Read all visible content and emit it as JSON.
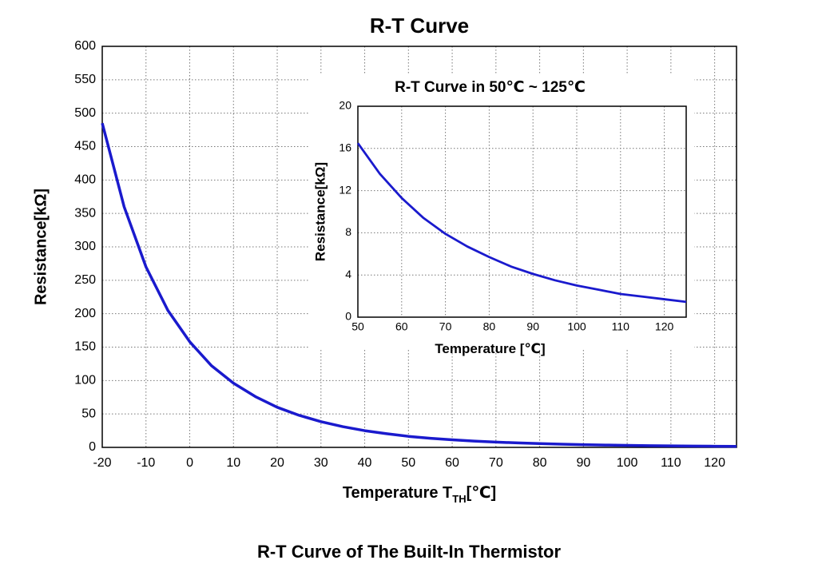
{
  "chart_data": [
    {
      "type": "line",
      "title": "R-T Curve",
      "xlabel": "Temperature T",
      "xlabel_sub": "TH",
      "xlabel_end": "[℃]",
      "ylabel": "Resistance[kΩ]",
      "xlim": [
        -20,
        125
      ],
      "ylim": [
        0,
        600
      ],
      "xticks": [
        -20,
        -10,
        0,
        10,
        20,
        30,
        40,
        50,
        60,
        70,
        80,
        90,
        100,
        110,
        120
      ],
      "yticks": [
        0,
        50,
        100,
        150,
        200,
        250,
        300,
        350,
        400,
        450,
        500,
        550,
        600
      ],
      "grid": true,
      "x": [
        -20,
        -15,
        -10,
        -5,
        0,
        5,
        10,
        15,
        20,
        25,
        30,
        35,
        40,
        45,
        50,
        55,
        60,
        65,
        70,
        75,
        80,
        85,
        90,
        95,
        100,
        105,
        110,
        115,
        120,
        125
      ],
      "series": [
        {
          "color": "#1a1acd",
          "values": [
            485,
            360,
            270,
            205,
            158,
            122,
            96,
            76,
            60,
            48,
            38.5,
            31,
            25,
            20.5,
            16.5,
            13.6,
            11.3,
            9.4,
            7.9,
            6.7,
            5.7,
            4.8,
            4.1,
            3.5,
            3.0,
            2.6,
            2.2,
            1.95,
            1.7,
            1.45
          ]
        }
      ]
    },
    {
      "type": "line",
      "title": "R-T Curve in 50℃ ~ 125℃",
      "xlabel": "Temperature [℃]",
      "ylabel": "Resistance[kΩ]",
      "xlim": [
        50,
        125
      ],
      "ylim": [
        0,
        20
      ],
      "xticks": [
        50,
        60,
        70,
        80,
        90,
        100,
        110,
        120
      ],
      "yticks": [
        0,
        4,
        8,
        12,
        16,
        20
      ],
      "grid": true,
      "x": [
        50,
        55,
        60,
        65,
        70,
        75,
        80,
        85,
        90,
        95,
        100,
        105,
        110,
        115,
        120,
        125
      ],
      "series": [
        {
          "color": "#1a1acd",
          "values": [
            16.5,
            13.6,
            11.3,
            9.4,
            7.9,
            6.7,
            5.7,
            4.8,
            4.1,
            3.5,
            3.0,
            2.6,
            2.2,
            1.95,
            1.7,
            1.45
          ]
        }
      ]
    }
  ],
  "caption": "R-T Curve of The Built-In Thermistor"
}
